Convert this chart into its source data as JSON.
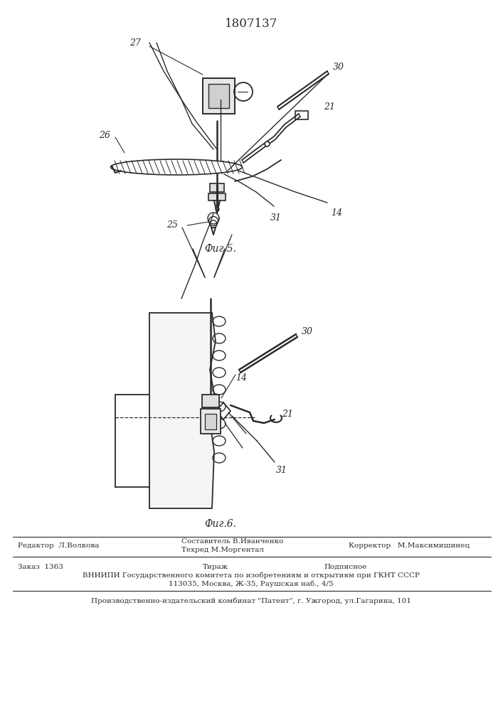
{
  "title": "1807137",
  "fig5_label": "Фиг.5.",
  "fig6_label": "Фиг.6.",
  "footer_line1_left": "Редактор  Л.Волкова",
  "footer_line1_center1": "Составитель В.Иванченко",
  "footer_line1_center2": "Техред М.Моргентал",
  "footer_line1_right": "Корректор   М.Максимишинец",
  "footer_line2_col1": "Заказ  1363",
  "footer_line2_col2": "Тираж",
  "footer_line2_col3": "Подписное",
  "footer_line3": "ВНИИПИ Государственного комитета по изобретениям и открытиям при ГКНТ СССР",
  "footer_line4": "113035, Москва, Ж-35, Раушская наб., 4/5",
  "footer_line5": "Производственно-издательский комбинат \"Патент\", г. Ужгород, ул.Гагарина, 101",
  "bg_color": "#ffffff",
  "ink_color": "#2a2a2a"
}
